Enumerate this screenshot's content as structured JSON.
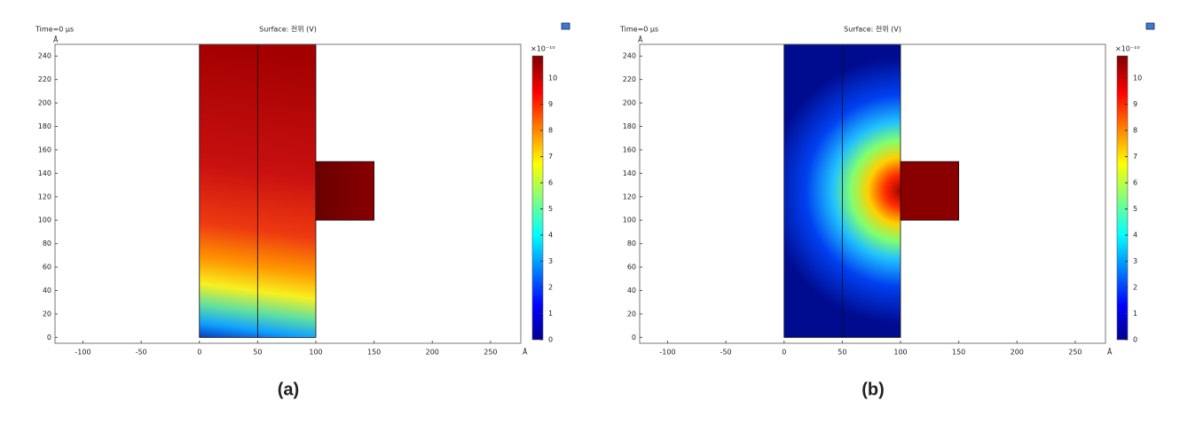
{
  "chart_data": [
    {
      "type": "surface",
      "time": "Time=0 μs",
      "title": "Surface: 전위 (V)",
      "x_unit": "Å",
      "y_unit": "Å",
      "xlim": [
        -124,
        276
      ],
      "ylim": [
        -5,
        250
      ],
      "xticks": [
        -100,
        -50,
        0,
        50,
        100,
        150,
        200,
        250
      ],
      "yticks": [
        0,
        20,
        40,
        60,
        80,
        100,
        120,
        140,
        160,
        180,
        200,
        220,
        240
      ],
      "colorbar": {
        "colormap": "jet",
        "lim": [
          0,
          10.85
        ],
        "ticks": [
          0,
          1,
          2,
          3,
          4,
          5,
          6,
          7,
          8,
          9,
          10
        ],
        "multiplier": "×10⁻¹⁰"
      },
      "domains": [
        {
          "x": [
            0,
            50
          ],
          "y": [
            0,
            250
          ]
        },
        {
          "x": [
            50,
            100
          ],
          "y": [
            0,
            250
          ]
        },
        {
          "x": [
            100,
            150
          ],
          "y": [
            100,
            150
          ]
        }
      ],
      "caption": "(a)"
    },
    {
      "type": "surface",
      "time": "Time=0 μs",
      "title": "Surface: 전위 (V)",
      "x_unit": "Å",
      "y_unit": "Å",
      "xlim": [
        -124,
        276
      ],
      "ylim": [
        -5,
        250
      ],
      "xticks": [
        -100,
        -50,
        0,
        50,
        100,
        150,
        200,
        250
      ],
      "yticks": [
        0,
        20,
        40,
        60,
        80,
        100,
        120,
        140,
        160,
        180,
        200,
        220,
        240
      ],
      "colorbar": {
        "colormap": "jet",
        "lim": [
          0,
          10.85
        ],
        "ticks": [
          0,
          1,
          2,
          3,
          4,
          5,
          6,
          7,
          8,
          9,
          10
        ],
        "multiplier": "×10⁻¹⁰"
      },
      "domains": [
        {
          "x": [
            0,
            50
          ],
          "y": [
            0,
            250
          ]
        },
        {
          "x": [
            50,
            100
          ],
          "y": [
            0,
            250
          ]
        },
        {
          "x": [
            100,
            150
          ],
          "y": [
            100,
            150
          ]
        }
      ],
      "caption": "(b)"
    }
  ]
}
